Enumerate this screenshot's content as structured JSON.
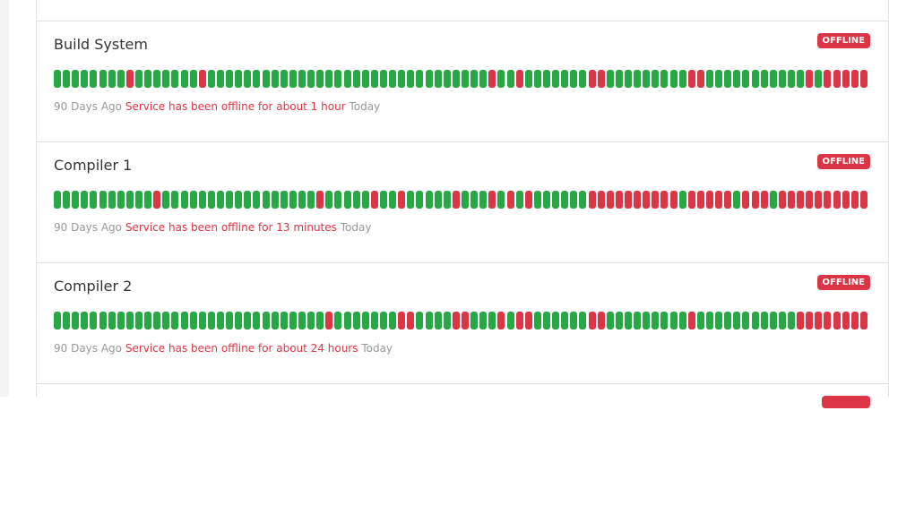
{
  "up_color": "#28a745",
  "down_color": "#dc3545",
  "services": [
    {
      "name": "Build System",
      "status": "OFFLINE",
      "start_label": "90 Days Ago",
      "message": "Service has been offline for about 1 hour",
      "end_label": "Today",
      "days": [
        1,
        1,
        1,
        1,
        1,
        1,
        1,
        1,
        0,
        1,
        1,
        1,
        1,
        1,
        1,
        1,
        0,
        1,
        1,
        1,
        1,
        1,
        1,
        1,
        1,
        1,
        1,
        1,
        1,
        1,
        1,
        1,
        1,
        1,
        1,
        1,
        1,
        1,
        1,
        1,
        1,
        1,
        1,
        1,
        1,
        1,
        1,
        1,
        0,
        1,
        1,
        0,
        1,
        1,
        1,
        1,
        1,
        1,
        1,
        0,
        0,
        1,
        1,
        1,
        1,
        1,
        1,
        1,
        1,
        1,
        0,
        0,
        1,
        1,
        1,
        1,
        1,
        1,
        1,
        1,
        1,
        1,
        1,
        0,
        1,
        0,
        0,
        0,
        0,
        0
      ]
    },
    {
      "name": "Compiler 1",
      "status": "OFFLINE",
      "start_label": "90 Days Ago",
      "message": "Service has been offline for 13 minutes",
      "end_label": "Today",
      "days": [
        1,
        1,
        1,
        1,
        1,
        1,
        1,
        1,
        1,
        1,
        1,
        0,
        1,
        1,
        1,
        1,
        1,
        1,
        1,
        1,
        1,
        1,
        1,
        1,
        1,
        1,
        1,
        1,
        1,
        0,
        1,
        1,
        1,
        1,
        1,
        0,
        1,
        1,
        0,
        1,
        1,
        1,
        1,
        1,
        0,
        1,
        1,
        1,
        0,
        1,
        0,
        1,
        0,
        1,
        1,
        1,
        1,
        1,
        1,
        0,
        0,
        0,
        0,
        0,
        0,
        0,
        0,
        0,
        0,
        1,
        0,
        0,
        0,
        0,
        0,
        1,
        0,
        0,
        0,
        1,
        0,
        0,
        0,
        0,
        0,
        0,
        0,
        0,
        0,
        0
      ]
    },
    {
      "name": "Compiler 2",
      "status": "OFFLINE",
      "start_label": "90 Days Ago",
      "message": "Service has been offline for about 24 hours",
      "end_label": "Today",
      "days": [
        1,
        1,
        1,
        1,
        1,
        1,
        1,
        1,
        1,
        1,
        1,
        1,
        1,
        1,
        1,
        1,
        1,
        1,
        1,
        1,
        1,
        1,
        1,
        1,
        1,
        1,
        1,
        1,
        1,
        1,
        0,
        1,
        1,
        1,
        1,
        1,
        1,
        1,
        0,
        0,
        1,
        1,
        1,
        1,
        0,
        0,
        1,
        1,
        1,
        0,
        1,
        0,
        0,
        1,
        1,
        1,
        1,
        1,
        1,
        0,
        0,
        1,
        1,
        1,
        1,
        1,
        1,
        1,
        1,
        1,
        0,
        1,
        1,
        1,
        1,
        1,
        1,
        1,
        1,
        1,
        1,
        1,
        0,
        0,
        0,
        0,
        0,
        0,
        0,
        0
      ]
    }
  ]
}
